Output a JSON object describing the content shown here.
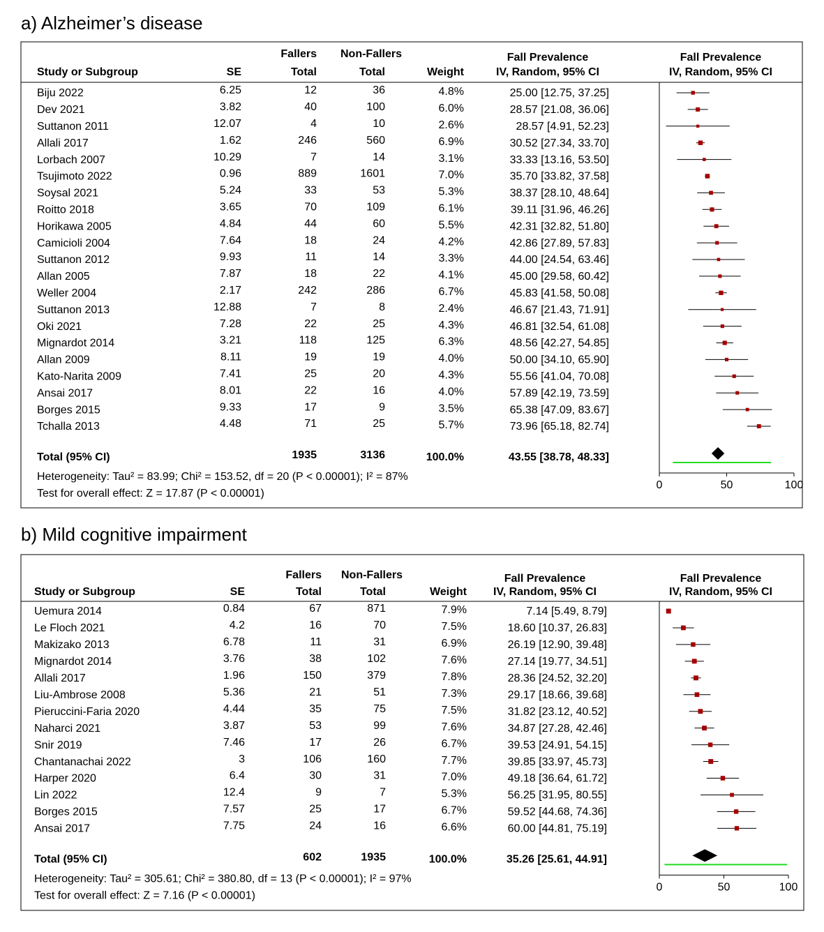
{
  "chart_data": [
    {
      "type": "forest",
      "title": "a) Alzheimer’s disease",
      "headers": {
        "study": "Study or Subgroup",
        "se": "SE",
        "fallers": [
          "Fallers",
          "Total"
        ],
        "non_fallers": [
          "Non-Fallers",
          "Total"
        ],
        "weight": "Weight",
        "effect": [
          "Fall Prevalence",
          "IV, Random, 95% CI"
        ],
        "plot": [
          "Fall Prevalence",
          "IV, Random, 95% CI"
        ]
      },
      "categories": [
        "Biju 2022",
        "Dev 2021",
        "Suttanon 2011",
        "Allali 2017",
        "Lorbach 2007",
        "Tsujimoto 2022",
        "Soysal 2021",
        "Roitto 2018",
        "Horikawa 2005",
        "Camicioli 2004",
        "Suttanon 2012",
        "Allan 2005",
        "Weller 2004",
        "Suttanon 2013",
        "Oki 2021",
        "Mignardot 2014",
        "Allan 2009",
        "Kato-Narita 2009",
        "Ansai 2017",
        "Borges 2015",
        "Tchalla 2013"
      ],
      "se": [
        6.25,
        3.82,
        12.07,
        1.62,
        10.29,
        0.96,
        5.24,
        3.65,
        4.84,
        7.64,
        9.93,
        7.87,
        2.17,
        12.88,
        7.28,
        3.21,
        8.11,
        7.41,
        8.01,
        9.33,
        4.48
      ],
      "fallers": [
        12,
        40,
        4,
        246,
        7,
        889,
        33,
        70,
        44,
        18,
        11,
        18,
        242,
        7,
        22,
        118,
        19,
        25,
        22,
        17,
        71
      ],
      "non_fallers": [
        36,
        100,
        10,
        560,
        14,
        1601,
        53,
        109,
        60,
        24,
        14,
        22,
        286,
        8,
        25,
        125,
        19,
        20,
        16,
        9,
        25
      ],
      "weights": [
        "4.8%",
        "6.0%",
        "2.6%",
        "6.9%",
        "3.1%",
        "7.0%",
        "5.3%",
        "6.1%",
        "5.5%",
        "4.2%",
        "3.3%",
        "4.1%",
        "6.7%",
        "2.4%",
        "4.3%",
        "6.3%",
        "4.0%",
        "4.3%",
        "4.0%",
        "3.5%",
        "5.7%"
      ],
      "values": [
        25.0,
        28.57,
        28.57,
        30.52,
        33.33,
        35.7,
        38.37,
        39.11,
        42.31,
        42.86,
        44.0,
        45.0,
        45.83,
        46.67,
        46.81,
        48.56,
        50.0,
        55.56,
        57.89,
        65.38,
        73.96
      ],
      "ci_low": [
        12.75,
        21.08,
        4.91,
        27.34,
        13.16,
        33.82,
        28.1,
        31.96,
        32.82,
        27.89,
        24.54,
        29.58,
        41.58,
        21.43,
        32.54,
        42.27,
        34.1,
        41.04,
        42.19,
        47.09,
        65.18
      ],
      "ci_high": [
        37.25,
        36.06,
        52.23,
        33.7,
        53.5,
        37.58,
        48.64,
        46.26,
        51.8,
        57.83,
        63.46,
        60.42,
        50.08,
        71.91,
        61.08,
        54.85,
        65.9,
        70.08,
        73.59,
        83.67,
        82.74
      ],
      "value_labels": [
        "25.00 [12.75, 37.25]",
        "28.57 [21.08, 36.06]",
        "28.57 [4.91, 52.23]",
        "30.52 [27.34, 33.70]",
        "33.33 [13.16, 53.50]",
        "35.70 [33.82, 37.58]",
        "38.37 [28.10, 48.64]",
        "39.11 [31.96, 46.26]",
        "42.31 [32.82, 51.80]",
        "42.86 [27.89, 57.83]",
        "44.00 [24.54, 63.46]",
        "45.00 [29.58, 60.42]",
        "45.83 [41.58, 50.08]",
        "46.67 [21.43, 71.91]",
        "46.81 [32.54, 61.08]",
        "48.56 [42.27, 54.85]",
        "50.00 [34.10, 65.90]",
        "55.56 [41.04, 70.08]",
        "57.89 [42.19, 73.59]",
        "65.38 [47.09, 83.67]",
        "73.96 [65.18, 82.74]"
      ],
      "total": {
        "label": "Total (95% CI)",
        "fallers": 1935,
        "non_fallers": 3136,
        "weight": "100.0%",
        "value": 43.55,
        "ci_low": 38.78,
        "ci_high": 48.33,
        "value_label": "43.55 [38.78, 48.33]"
      },
      "prediction_interval": [
        10,
        83
      ],
      "heterogeneity": "Heterogeneity: Tau² = 83.99; Chi² = 153.52, df = 20 (P < 0.00001); I² = 87%",
      "overall_effect": "Test for overall effect: Z = 17.87 (P < 0.00001)",
      "xlim": [
        0,
        100
      ],
      "xticks": [
        0,
        50,
        100
      ]
    },
    {
      "type": "forest",
      "title": "b) Mild cognitive impairment",
      "headers": {
        "study": "Study or Subgroup",
        "se": "SE",
        "fallers": [
          "Fallers",
          "Total"
        ],
        "non_fallers": [
          "Non-Fallers",
          "Total"
        ],
        "weight": "Weight",
        "effect": [
          "Fall Prevalence",
          "IV, Random, 95% CI"
        ],
        "plot": [
          "Fall Prevalence",
          "IV, Random, 95% CI"
        ]
      },
      "categories": [
        "Uemura 2014",
        "Le Floch 2021",
        "Makizako 2013",
        "Mignardot 2014",
        "Allali 2017",
        "Liu-Ambrose 2008",
        "Pieruccini-Faria 2020",
        "Naharci 2021",
        "Snir 2019",
        "Chantanachai 2022",
        "Harper 2020",
        "Lin 2022",
        "Borges 2015",
        "Ansai 2017"
      ],
      "se": [
        0.84,
        4.2,
        6.78,
        3.76,
        1.96,
        5.36,
        4.44,
        3.87,
        7.46,
        3,
        6.4,
        12.4,
        7.57,
        7.75
      ],
      "fallers": [
        67,
        16,
        11,
        38,
        150,
        21,
        35,
        53,
        17,
        106,
        30,
        9,
        25,
        24
      ],
      "non_fallers": [
        871,
        70,
        31,
        102,
        379,
        51,
        75,
        99,
        26,
        160,
        31,
        7,
        17,
        16
      ],
      "weights": [
        "7.9%",
        "7.5%",
        "6.9%",
        "7.6%",
        "7.8%",
        "7.3%",
        "7.5%",
        "7.6%",
        "6.7%",
        "7.7%",
        "7.0%",
        "5.3%",
        "6.7%",
        "6.6%"
      ],
      "values": [
        7.14,
        18.6,
        26.19,
        27.14,
        28.36,
        29.17,
        31.82,
        34.87,
        39.53,
        39.85,
        49.18,
        56.25,
        59.52,
        60.0
      ],
      "ci_low": [
        5.49,
        10.37,
        12.9,
        19.77,
        24.52,
        18.66,
        23.12,
        27.28,
        24.91,
        33.97,
        36.64,
        31.95,
        44.68,
        44.81
      ],
      "ci_high": [
        8.79,
        26.83,
        39.48,
        34.51,
        32.2,
        39.68,
        40.52,
        42.46,
        54.15,
        45.73,
        61.72,
        80.55,
        74.36,
        75.19
      ],
      "value_labels": [
        "7.14 [5.49, 8.79]",
        "18.60 [10.37, 26.83]",
        "26.19 [12.90, 39.48]",
        "27.14 [19.77, 34.51]",
        "28.36 [24.52, 32.20]",
        "29.17 [18.66, 39.68]",
        "31.82 [23.12, 40.52]",
        "34.87 [27.28, 42.46]",
        "39.53 [24.91, 54.15]",
        "39.85 [33.97, 45.73]",
        "49.18 [36.64, 61.72]",
        "56.25 [31.95, 80.55]",
        "59.52 [44.68, 74.36]",
        "60.00 [44.81, 75.19]"
      ],
      "total": {
        "label": "Total (95% CI)",
        "fallers": 602,
        "non_fallers": 1935,
        "weight": "100.0%",
        "value": 35.26,
        "ci_low": 25.61,
        "ci_high": 44.91,
        "value_label": "35.26 [25.61, 44.91]"
      },
      "prediction_interval": [
        4,
        99
      ],
      "heterogeneity": "Heterogeneity: Tau² = 305.61; Chi² = 380.80, df = 13 (P < 0.00001); I² = 97%",
      "overall_effect": "Test for overall effect: Z = 7.16 (P < 0.00001)",
      "xlim": [
        0,
        100
      ],
      "xticks": [
        0,
        50,
        100
      ]
    }
  ]
}
